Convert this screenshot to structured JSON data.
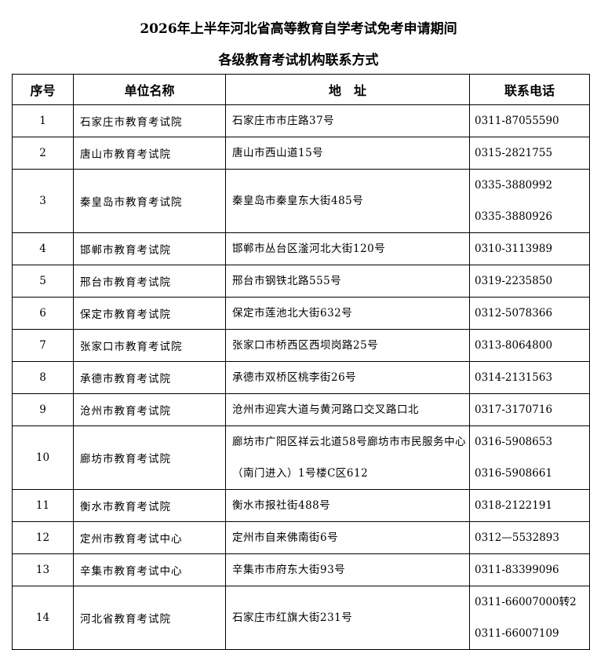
{
  "title_line1": "2026年上半年河北省高等教育自学考试免考申请期间",
  "title_line2": "各级教育考试机构联系方式",
  "headers": [
    "序号",
    "单位名称",
    "地　址",
    "联系电话"
  ],
  "rows": [
    {
      "no": "1",
      "name": "石家庄市教育考试院",
      "address": "石家庄市市庄路37号",
      "phones": [
        "0311-87055590"
      ]
    },
    {
      "no": "2",
      "name": "唐山市教育考试院",
      "address": "唐山市西山道15号",
      "phones": [
        "0315-2821755"
      ]
    },
    {
      "no": "3",
      "name": "秦皇岛市教育考试院",
      "address": "秦皇岛市秦皇东大街485号",
      "phones": [
        "0335-3880992",
        "0335-3880926"
      ]
    },
    {
      "no": "4",
      "name": "邯郸市教育考试院",
      "address": "邯郸市丛台区滏河北大街120号",
      "phones": [
        "0310-3113989"
      ]
    },
    {
      "no": "5",
      "name": "邢台市教育考试院",
      "address": "邢台市钢铁北路555号",
      "phones": [
        "0319-2235850"
      ]
    },
    {
      "no": "6",
      "name": "保定市教育考试院",
      "address": "保定市莲池北大街632号",
      "phones": [
        "0312-5078366"
      ]
    },
    {
      "no": "7",
      "name": "张家口市教育考试院",
      "address": "张家口市桥西区西坝岗路25号",
      "phones": [
        "0313-8064800"
      ]
    },
    {
      "no": "8",
      "name": "承德市教育考试院",
      "address": "承德市双桥区桃李街26号",
      "phones": [
        "0314-2131563"
      ]
    },
    {
      "no": "9",
      "name": "沧州市教育考试院",
      "address": "沧州市迎宾大道与黄河路口交叉路口北",
      "phones": [
        "0317-3170716"
      ]
    },
    {
      "no": "10",
      "name": "廊坊市教育考试院",
      "address": "廊坊市广阳区祥云北道58号廊坊市市民服务中心（南门进入）1号楼C区612",
      "phones": [
        "0316-5908653",
        "0316-5908661"
      ]
    },
    {
      "no": "11",
      "name": "衡水市教育考试院",
      "address": "衡水市报社街488号",
      "phones": [
        "0318-2122191"
      ]
    },
    {
      "no": "12",
      "name": "定州市教育考试中心",
      "address": "定州市自来佛南街6号",
      "phones": [
        "0312—5532893"
      ]
    },
    {
      "no": "13",
      "name": "辛集市教育考试中心",
      "address": "辛集市市府东大街93号",
      "phones": [
        "0311-83399096"
      ]
    },
    {
      "no": "14",
      "name": "河北省教育考试院",
      "address": "石家庄市红旗大街231号",
      "phones": [
        "0311-66007000转2",
        "0311-66007109"
      ]
    }
  ]
}
